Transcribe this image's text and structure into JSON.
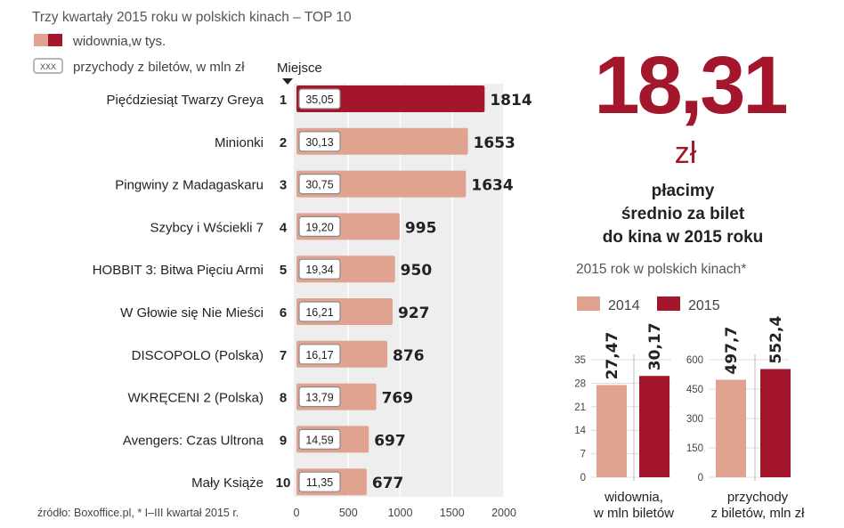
{
  "header": {
    "title": "Trzy kwartały 2015 roku w polskich kinach – TOP 10",
    "legend_audience": "widownia,w  tys.",
    "legend_revenue_box": "XXX",
    "legend_revenue": "przychody z biletów, w mln zł",
    "rank_header": "Miejsce"
  },
  "source": "źródło: Boxoffice.pl, * I–III kwartał 2015 r.",
  "highlight": {
    "number": "18,31",
    "unit": "zł",
    "line1": "płacimy",
    "line2": "średnio za bilet",
    "line3": "do kina w 2015 roku"
  },
  "colors": {
    "light": "#e0a390",
    "dark": "#a3162c",
    "top_bar": "#a3162c",
    "bg_strip": "#eeeeee",
    "box_border": "#8a8a8a"
  },
  "chart_data": [
    {
      "type": "bar",
      "orientation": "horizontal",
      "categories": [
        "Pięćdziesiąt Twarzy Greya",
        "Minionki",
        "Pingwiny z Madagaskaru",
        "Szybcy i Wściekli 7",
        "HOBBIT 3: Bitwa Pięciu Armi",
        "W Głowie się Nie Mieści",
        "DISCOPOLO (Polska)",
        "WKRĘCENI 2 (Polska)",
        "Avengers: Czas Ultrona",
        "Mały Książe"
      ],
      "ranks": [
        "1",
        "2",
        "3",
        "4",
        "5",
        "6",
        "7",
        "8",
        "9",
        "10"
      ],
      "series": [
        {
          "name": "widownia,w  tys.",
          "values": [
            1814,
            1653,
            1634,
            995,
            950,
            927,
            876,
            769,
            697,
            677
          ],
          "labels": [
            "1814",
            "1653",
            "1634",
            "995",
            "950",
            "927",
            "876",
            "769",
            "697",
            "677"
          ]
        },
        {
          "name": "przychody z biletów, w mln zł",
          "values": [
            35.05,
            30.13,
            30.75,
            19.2,
            19.34,
            16.21,
            16.17,
            13.79,
            14.59,
            11.35
          ],
          "labels": [
            "35,05",
            "30,13",
            "30,75",
            "19,20",
            "19,34",
            "16,21",
            "16,17",
            "13,79",
            "14,59",
            "11,35"
          ]
        }
      ],
      "xlim": [
        0,
        2000
      ],
      "xticks": [
        "0",
        "500",
        "1000",
        "1500",
        "2000"
      ]
    },
    {
      "type": "bar",
      "title": "2015 rok w polskich kinach*",
      "legend": [
        "2014",
        "2015"
      ],
      "panels": [
        {
          "xlabel_line1": "widownia,",
          "xlabel_line2": "w mln biletów",
          "values": [
            27.47,
            30.17
          ],
          "labels": [
            "27,47",
            "30,17"
          ],
          "ylim": [
            0,
            35
          ],
          "yticks": [
            0,
            7,
            14,
            21,
            28,
            35
          ],
          "yticklabels": [
            "0",
            "7",
            "14",
            "21",
            "28",
            "35"
          ]
        },
        {
          "xlabel_line1": "przychody",
          "xlabel_line2": "z biletów, mln zł",
          "values": [
            497.7,
            552.4
          ],
          "labels": [
            "497,7",
            "552,4"
          ],
          "ylim": [
            0,
            600
          ],
          "yticks": [
            0,
            150,
            300,
            450,
            600
          ],
          "yticklabels": [
            "0",
            "150",
            "300",
            "450",
            "600"
          ]
        }
      ]
    }
  ]
}
